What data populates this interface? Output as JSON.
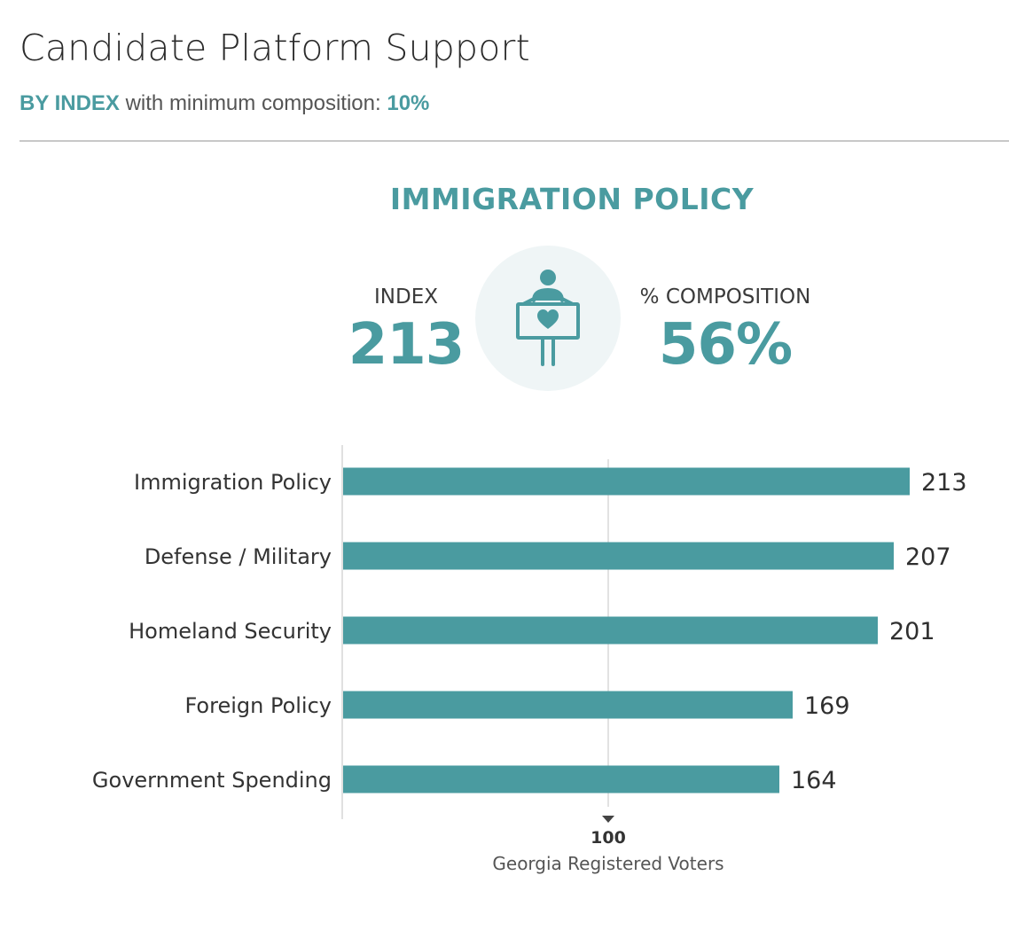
{
  "header": {
    "title": "Candidate Platform Support",
    "subtitle_mode": "BY INDEX",
    "subtitle_text": " with minimum composition: ",
    "subtitle_min": "10%"
  },
  "highlight": {
    "title": "IMMIGRATION POLICY",
    "index_label": "INDEX",
    "index_value": "213",
    "composition_label": "% COMPOSITION",
    "composition_value": "56%",
    "icon": "person-holding-heart-sign-icon"
  },
  "colors": {
    "accent": "#4a9ba0",
    "bar": "#4a9ba0",
    "icon_bg": "#eff5f6",
    "icon": "#4a9ba0"
  },
  "chart_data": {
    "type": "bar",
    "orientation": "horizontal",
    "categories": [
      "Immigration Policy",
      "Defense / Military",
      "Homeland Security",
      "Foreign Policy",
      "Government Spending"
    ],
    "values": [
      213,
      207,
      201,
      169,
      164
    ],
    "reference_line": {
      "value": 100,
      "label": "100",
      "caption": "Georgia Registered Voters"
    },
    "xlim": [
      0,
      230
    ],
    "grid": false,
    "legend": "none"
  }
}
